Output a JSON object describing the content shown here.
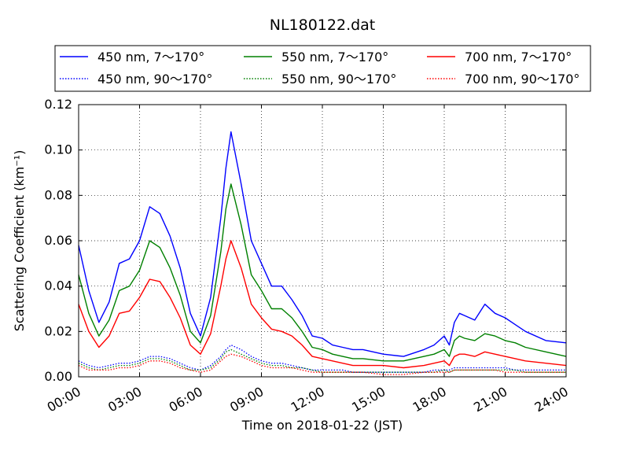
{
  "chart_data": {
    "type": "line",
    "title": "NL180122.dat",
    "xlabel": "Time on 2018-01-22 (JST)",
    "ylabel": "Scattering Coefficient (km⁻¹)",
    "xlim": [
      0,
      24
    ],
    "ylim": [
      0,
      0.12
    ],
    "x_ticks": [
      "00:00",
      "03:00",
      "06:00",
      "09:00",
      "12:00",
      "15:00",
      "18:00",
      "21:00",
      "24:00"
    ],
    "y_ticks": [
      "0.00",
      "0.02",
      "0.04",
      "0.06",
      "0.08",
      "0.10",
      "0.12"
    ],
    "grid": true,
    "legend_position": "top",
    "x": [
      0,
      0.5,
      1,
      1.5,
      2,
      2.5,
      3,
      3.5,
      4,
      4.5,
      5,
      5.5,
      6,
      6.5,
      7,
      7.25,
      7.5,
      8,
      8.5,
      9,
      9.5,
      10,
      10.5,
      11,
      11.5,
      12,
      12.5,
      13,
      13.5,
      14,
      15,
      16,
      17,
      17.5,
      18,
      18.25,
      18.5,
      18.75,
      19,
      19.5,
      20,
      20.5,
      21,
      21.5,
      22,
      23,
      24
    ],
    "series": [
      {
        "name": "450 nm, 7～170°",
        "color": "#0000ff",
        "style": "solid",
        "values": [
          0.058,
          0.038,
          0.024,
          0.033,
          0.05,
          0.052,
          0.06,
          0.075,
          0.072,
          0.062,
          0.048,
          0.028,
          0.018,
          0.035,
          0.07,
          0.092,
          0.108,
          0.085,
          0.06,
          0.05,
          0.04,
          0.04,
          0.034,
          0.027,
          0.018,
          0.017,
          0.014,
          0.013,
          0.012,
          0.012,
          0.01,
          0.009,
          0.012,
          0.014,
          0.018,
          0.014,
          0.024,
          0.028,
          0.027,
          0.025,
          0.032,
          0.028,
          0.026,
          0.023,
          0.02,
          0.016,
          0.015
        ]
      },
      {
        "name": "550 nm, 7～170°",
        "color": "#008000",
        "style": "solid",
        "values": [
          0.045,
          0.028,
          0.018,
          0.025,
          0.038,
          0.04,
          0.047,
          0.06,
          0.057,
          0.048,
          0.036,
          0.02,
          0.015,
          0.027,
          0.055,
          0.074,
          0.085,
          0.067,
          0.045,
          0.038,
          0.03,
          0.03,
          0.026,
          0.02,
          0.013,
          0.012,
          0.01,
          0.009,
          0.008,
          0.008,
          0.007,
          0.007,
          0.009,
          0.01,
          0.012,
          0.009,
          0.016,
          0.018,
          0.017,
          0.016,
          0.019,
          0.018,
          0.016,
          0.015,
          0.013,
          0.011,
          0.009
        ]
      },
      {
        "name": "700 nm, 7～170°",
        "color": "#ff0000",
        "style": "solid",
        "values": [
          0.032,
          0.02,
          0.013,
          0.018,
          0.028,
          0.029,
          0.035,
          0.043,
          0.042,
          0.035,
          0.026,
          0.014,
          0.01,
          0.019,
          0.04,
          0.052,
          0.06,
          0.048,
          0.032,
          0.026,
          0.021,
          0.02,
          0.018,
          0.014,
          0.009,
          0.008,
          0.007,
          0.006,
          0.005,
          0.005,
          0.005,
          0.004,
          0.005,
          0.006,
          0.007,
          0.005,
          0.009,
          0.01,
          0.01,
          0.009,
          0.011,
          0.01,
          0.009,
          0.008,
          0.007,
          0.006,
          0.005
        ]
      },
      {
        "name": "450 nm, 90～170°",
        "color": "#0000ff",
        "style": "dotted",
        "values": [
          0.007,
          0.005,
          0.004,
          0.005,
          0.006,
          0.006,
          0.007,
          0.009,
          0.009,
          0.008,
          0.006,
          0.004,
          0.003,
          0.005,
          0.009,
          0.012,
          0.014,
          0.012,
          0.009,
          0.007,
          0.006,
          0.006,
          0.005,
          0.004,
          0.003,
          0.003,
          0.003,
          0.003,
          0.002,
          0.002,
          0.002,
          0.002,
          0.002,
          0.003,
          0.003,
          0.003,
          0.004,
          0.004,
          0.004,
          0.004,
          0.004,
          0.004,
          0.004,
          0.003,
          0.003,
          0.003,
          0.003
        ]
      },
      {
        "name": "550 nm, 90～170°",
        "color": "#008000",
        "style": "dotted",
        "values": [
          0.006,
          0.004,
          0.003,
          0.004,
          0.005,
          0.005,
          0.006,
          0.008,
          0.008,
          0.007,
          0.005,
          0.003,
          0.003,
          0.004,
          0.008,
          0.011,
          0.012,
          0.01,
          0.008,
          0.006,
          0.005,
          0.005,
          0.004,
          0.004,
          0.003,
          0.002,
          0.002,
          0.002,
          0.002,
          0.002,
          0.002,
          0.002,
          0.002,
          0.002,
          0.003,
          0.002,
          0.003,
          0.003,
          0.003,
          0.003,
          0.003,
          0.003,
          0.003,
          0.003,
          0.002,
          0.002,
          0.002
        ]
      },
      {
        "name": "700 nm, 90～170°",
        "color": "#ff0000",
        "style": "dotted",
        "values": [
          0.005,
          0.003,
          0.003,
          0.003,
          0.004,
          0.004,
          0.005,
          0.007,
          0.007,
          0.006,
          0.004,
          0.003,
          0.002,
          0.003,
          0.007,
          0.009,
          0.01,
          0.009,
          0.007,
          0.005,
          0.004,
          0.004,
          0.004,
          0.003,
          0.002,
          0.002,
          0.002,
          0.002,
          0.002,
          0.002,
          0.001,
          0.001,
          0.002,
          0.002,
          0.002,
          0.002,
          0.003,
          0.003,
          0.003,
          0.003,
          0.003,
          0.003,
          0.002,
          0.002,
          0.002,
          0.002,
          0.002
        ]
      }
    ]
  }
}
